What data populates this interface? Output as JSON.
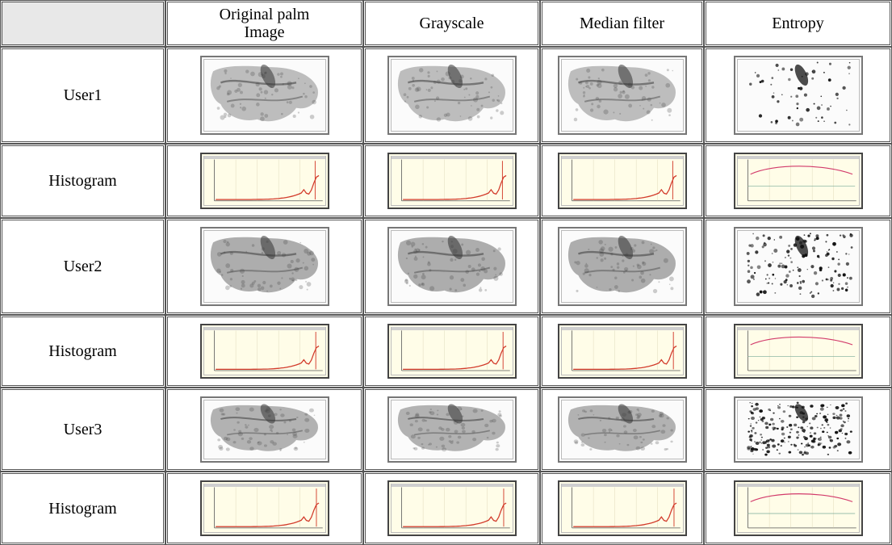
{
  "table": {
    "headers": [
      "",
      "Original palm Image",
      "Grayscale",
      "Median filter",
      "Entropy"
    ],
    "rows": [
      {
        "label": "User1",
        "kind": "image"
      },
      {
        "label": "Histogram",
        "kind": "histogram"
      },
      {
        "label": "User2",
        "kind": "image"
      },
      {
        "label": "Histogram",
        "kind": "histogram"
      },
      {
        "label": "User3",
        "kind": "image"
      },
      {
        "label": "Histogram",
        "kind": "histogram"
      }
    ]
  },
  "colors": {
    "border": "#555555",
    "corner_fill": "#e8e8e8",
    "histogram_bg": "#fffde8",
    "histogram_curve": "#d23a2a",
    "entropy_curve": "#d23a6a"
  }
}
